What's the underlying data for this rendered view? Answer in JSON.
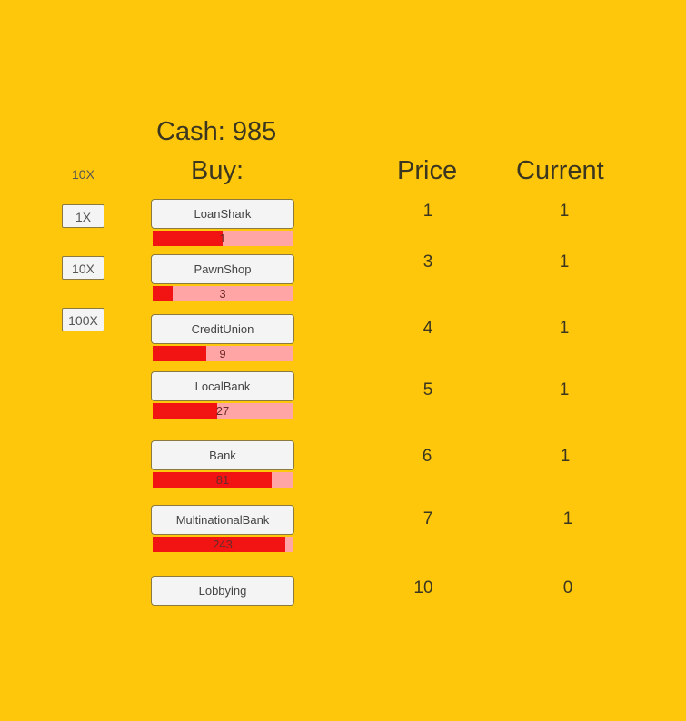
{
  "cash_label": "Cash: 985",
  "buy_label": "Buy:",
  "price_header": "Price",
  "current_header": "Current",
  "multiplier_current": "10X",
  "multipliers": [
    "1X",
    "10X",
    "100X"
  ],
  "items": [
    {
      "name": "LoanShark",
      "progress_label": "1",
      "progress": 0.5,
      "price": "1",
      "current": "1"
    },
    {
      "name": "PawnShop",
      "progress_label": "3",
      "progress": 0.14,
      "price": "3",
      "current": "1"
    },
    {
      "name": "CreditUnion",
      "progress_label": "9",
      "progress": 0.38,
      "price": "4",
      "current": "1"
    },
    {
      "name": "LocalBank",
      "progress_label": "27",
      "progress": 0.46,
      "price": "5",
      "current": "1"
    },
    {
      "name": "Bank",
      "progress_label": "81",
      "progress": 0.85,
      "price": "6",
      "current": "1"
    },
    {
      "name": "MultinationalBank",
      "progress_label": "243",
      "progress": 0.95,
      "price": "7",
      "current": "1"
    },
    {
      "name": "Lobbying",
      "price": "10",
      "current": "0"
    }
  ],
  "colors": {
    "background": "#FFC70C",
    "bar_fill": "#F21313",
    "bar_track": "#FFA5A5"
  }
}
